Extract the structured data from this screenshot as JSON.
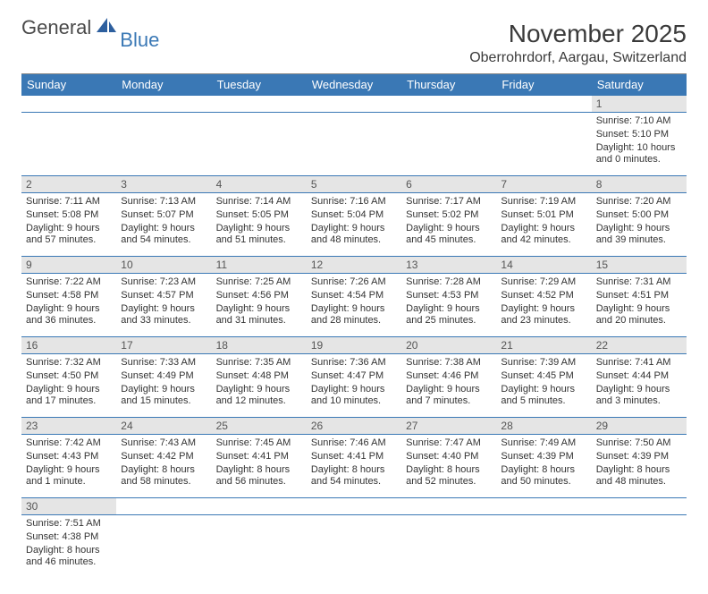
{
  "brand": {
    "first": "General",
    "second": "Blue"
  },
  "title": "November 2025",
  "location": "Oberrohrdorf, Aargau, Switzerland",
  "colors": {
    "header_bg": "#3a78b5",
    "header_text": "#ffffff",
    "daynum_bg": "#e5e5e5",
    "text": "#333333",
    "rule": "#3a78b5"
  },
  "day_headers": [
    "Sunday",
    "Monday",
    "Tuesday",
    "Wednesday",
    "Thursday",
    "Friday",
    "Saturday"
  ],
  "weeks": [
    [
      null,
      null,
      null,
      null,
      null,
      null,
      {
        "n": "1",
        "sunrise": "Sunrise: 7:10 AM",
        "sunset": "Sunset: 5:10 PM",
        "daylight": "Daylight: 10 hours and 0 minutes."
      }
    ],
    [
      {
        "n": "2",
        "sunrise": "Sunrise: 7:11 AM",
        "sunset": "Sunset: 5:08 PM",
        "daylight": "Daylight: 9 hours and 57 minutes."
      },
      {
        "n": "3",
        "sunrise": "Sunrise: 7:13 AM",
        "sunset": "Sunset: 5:07 PM",
        "daylight": "Daylight: 9 hours and 54 minutes."
      },
      {
        "n": "4",
        "sunrise": "Sunrise: 7:14 AM",
        "sunset": "Sunset: 5:05 PM",
        "daylight": "Daylight: 9 hours and 51 minutes."
      },
      {
        "n": "5",
        "sunrise": "Sunrise: 7:16 AM",
        "sunset": "Sunset: 5:04 PM",
        "daylight": "Daylight: 9 hours and 48 minutes."
      },
      {
        "n": "6",
        "sunrise": "Sunrise: 7:17 AM",
        "sunset": "Sunset: 5:02 PM",
        "daylight": "Daylight: 9 hours and 45 minutes."
      },
      {
        "n": "7",
        "sunrise": "Sunrise: 7:19 AM",
        "sunset": "Sunset: 5:01 PM",
        "daylight": "Daylight: 9 hours and 42 minutes."
      },
      {
        "n": "8",
        "sunrise": "Sunrise: 7:20 AM",
        "sunset": "Sunset: 5:00 PM",
        "daylight": "Daylight: 9 hours and 39 minutes."
      }
    ],
    [
      {
        "n": "9",
        "sunrise": "Sunrise: 7:22 AM",
        "sunset": "Sunset: 4:58 PM",
        "daylight": "Daylight: 9 hours and 36 minutes."
      },
      {
        "n": "10",
        "sunrise": "Sunrise: 7:23 AM",
        "sunset": "Sunset: 4:57 PM",
        "daylight": "Daylight: 9 hours and 33 minutes."
      },
      {
        "n": "11",
        "sunrise": "Sunrise: 7:25 AM",
        "sunset": "Sunset: 4:56 PM",
        "daylight": "Daylight: 9 hours and 31 minutes."
      },
      {
        "n": "12",
        "sunrise": "Sunrise: 7:26 AM",
        "sunset": "Sunset: 4:54 PM",
        "daylight": "Daylight: 9 hours and 28 minutes."
      },
      {
        "n": "13",
        "sunrise": "Sunrise: 7:28 AM",
        "sunset": "Sunset: 4:53 PM",
        "daylight": "Daylight: 9 hours and 25 minutes."
      },
      {
        "n": "14",
        "sunrise": "Sunrise: 7:29 AM",
        "sunset": "Sunset: 4:52 PM",
        "daylight": "Daylight: 9 hours and 23 minutes."
      },
      {
        "n": "15",
        "sunrise": "Sunrise: 7:31 AM",
        "sunset": "Sunset: 4:51 PM",
        "daylight": "Daylight: 9 hours and 20 minutes."
      }
    ],
    [
      {
        "n": "16",
        "sunrise": "Sunrise: 7:32 AM",
        "sunset": "Sunset: 4:50 PM",
        "daylight": "Daylight: 9 hours and 17 minutes."
      },
      {
        "n": "17",
        "sunrise": "Sunrise: 7:33 AM",
        "sunset": "Sunset: 4:49 PM",
        "daylight": "Daylight: 9 hours and 15 minutes."
      },
      {
        "n": "18",
        "sunrise": "Sunrise: 7:35 AM",
        "sunset": "Sunset: 4:48 PM",
        "daylight": "Daylight: 9 hours and 12 minutes."
      },
      {
        "n": "19",
        "sunrise": "Sunrise: 7:36 AM",
        "sunset": "Sunset: 4:47 PM",
        "daylight": "Daylight: 9 hours and 10 minutes."
      },
      {
        "n": "20",
        "sunrise": "Sunrise: 7:38 AM",
        "sunset": "Sunset: 4:46 PM",
        "daylight": "Daylight: 9 hours and 7 minutes."
      },
      {
        "n": "21",
        "sunrise": "Sunrise: 7:39 AM",
        "sunset": "Sunset: 4:45 PM",
        "daylight": "Daylight: 9 hours and 5 minutes."
      },
      {
        "n": "22",
        "sunrise": "Sunrise: 7:41 AM",
        "sunset": "Sunset: 4:44 PM",
        "daylight": "Daylight: 9 hours and 3 minutes."
      }
    ],
    [
      {
        "n": "23",
        "sunrise": "Sunrise: 7:42 AM",
        "sunset": "Sunset: 4:43 PM",
        "daylight": "Daylight: 9 hours and 1 minute."
      },
      {
        "n": "24",
        "sunrise": "Sunrise: 7:43 AM",
        "sunset": "Sunset: 4:42 PM",
        "daylight": "Daylight: 8 hours and 58 minutes."
      },
      {
        "n": "25",
        "sunrise": "Sunrise: 7:45 AM",
        "sunset": "Sunset: 4:41 PM",
        "daylight": "Daylight: 8 hours and 56 minutes."
      },
      {
        "n": "26",
        "sunrise": "Sunrise: 7:46 AM",
        "sunset": "Sunset: 4:41 PM",
        "daylight": "Daylight: 8 hours and 54 minutes."
      },
      {
        "n": "27",
        "sunrise": "Sunrise: 7:47 AM",
        "sunset": "Sunset: 4:40 PM",
        "daylight": "Daylight: 8 hours and 52 minutes."
      },
      {
        "n": "28",
        "sunrise": "Sunrise: 7:49 AM",
        "sunset": "Sunset: 4:39 PM",
        "daylight": "Daylight: 8 hours and 50 minutes."
      },
      {
        "n": "29",
        "sunrise": "Sunrise: 7:50 AM",
        "sunset": "Sunset: 4:39 PM",
        "daylight": "Daylight: 8 hours and 48 minutes."
      }
    ],
    [
      {
        "n": "30",
        "sunrise": "Sunrise: 7:51 AM",
        "sunset": "Sunset: 4:38 PM",
        "daylight": "Daylight: 8 hours and 46 minutes."
      },
      null,
      null,
      null,
      null,
      null,
      null
    ]
  ]
}
